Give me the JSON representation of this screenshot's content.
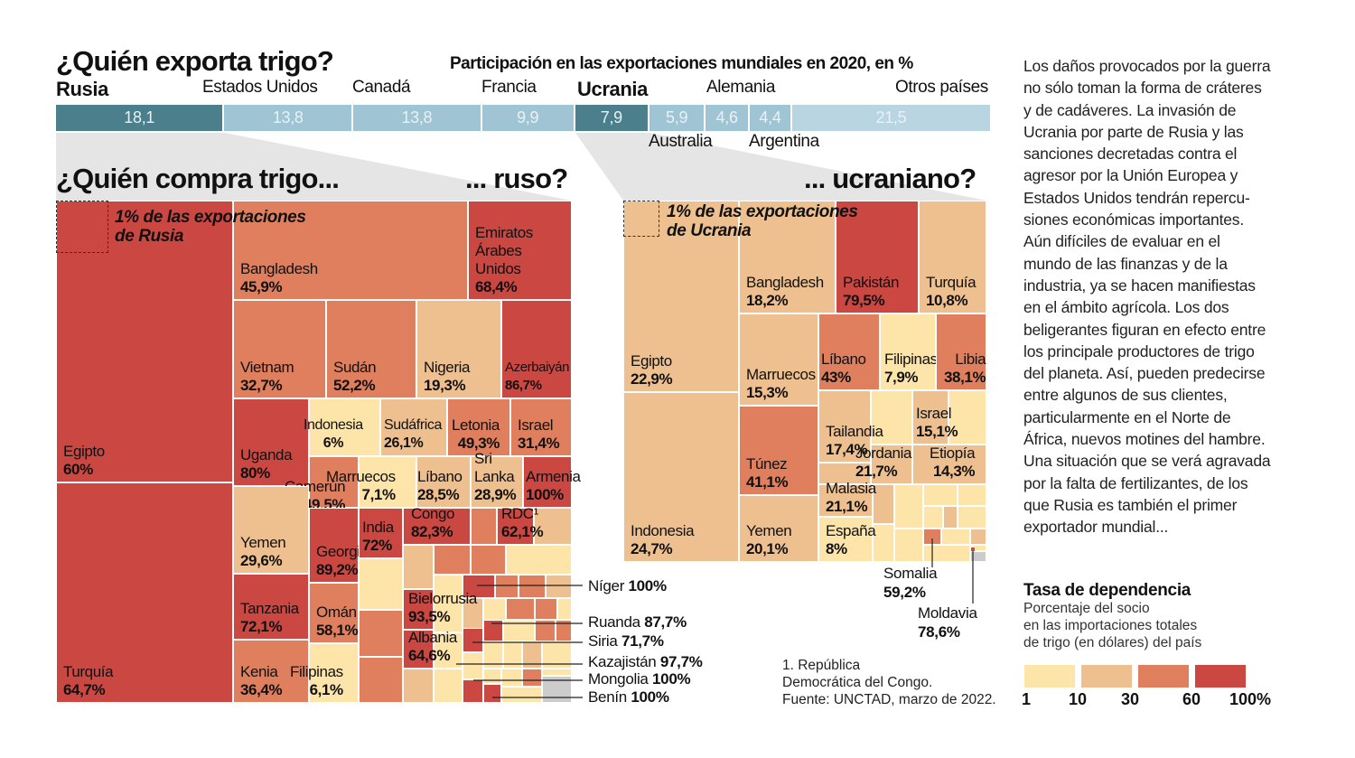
{
  "colors": {
    "bins": [
      "#fde5a9",
      "#efc08f",
      "#df7f5e",
      "#cb4742"
    ],
    "unlabeled_gray": "#cccccc",
    "export_highlight": "#4b7f8c",
    "export_other": "#9fc5d5",
    "export_rest": "#b9d5e2",
    "wedge": "#e5e5e5"
  },
  "title": "¿Quién exporta trigo?",
  "export_subtitle": "Participación en las exportaciones mundiales en 2020, en %",
  "chart_data": [
    {
      "type": "bar",
      "title": "¿Quién exporta trigo?",
      "subtitle": "Participación en las exportaciones mundiales en 2020, en %",
      "categories": [
        "Rusia",
        "Estados Unidos",
        "Canadá",
        "Francia",
        "Ucrania",
        "Australia",
        "Alemania",
        "Argentina",
        "Otros países"
      ],
      "values": [
        "18,1",
        "13,8",
        "13,8",
        "9,9",
        "7,9",
        "5,9",
        "4,6",
        "4,4",
        "21,5"
      ]
    },
    {
      "type": "treemap",
      "title": "¿Quién compra trigo... ruso?",
      "note": "1% de las exportaciones de Rusia",
      "cells": [
        {
          "name": "Egipto",
          "value": "60%"
        },
        {
          "name": "Turquía",
          "value": "64,7%"
        },
        {
          "name": "Bangladesh",
          "value": "45,9%"
        },
        {
          "name": "Emiratos Árabes Unidos",
          "value": "68,4%"
        },
        {
          "name": "Vietnam",
          "value": "32,7%"
        },
        {
          "name": "Sudán",
          "value": "52,2%"
        },
        {
          "name": "Nigeria",
          "value": "19,3%"
        },
        {
          "name": "Azerbaiyán",
          "value": "86,7%"
        },
        {
          "name": "Uganda",
          "value": "80%"
        },
        {
          "name": "Indonesia",
          "value": "6%"
        },
        {
          "name": "Sudáfrica",
          "value": "26,1%"
        },
        {
          "name": "Letonia",
          "value": "49,3%"
        },
        {
          "name": "Israel",
          "value": "31,4%"
        },
        {
          "name": "Camerún",
          "value": "49,5%"
        },
        {
          "name": "Marruecos",
          "value": "7,1%"
        },
        {
          "name": "Líbano",
          "value": "28,5%"
        },
        {
          "name": "Sri Lanka",
          "value": "28,9%"
        },
        {
          "name": "Armenia",
          "value": "100%"
        },
        {
          "name": "Yemen",
          "value": "29,6%"
        },
        {
          "name": "Tanzania",
          "value": "72,1%"
        },
        {
          "name": "Kenia",
          "value": "36,4%"
        },
        {
          "name": "Georgia",
          "value": "89,2%"
        },
        {
          "name": "Omán",
          "value": "58,1%"
        },
        {
          "name": "Filipinas",
          "value": "6,1%"
        },
        {
          "name": "India",
          "value": "72%"
        },
        {
          "name": "Congo",
          "value": "82,3%"
        },
        {
          "name": "RDC¹",
          "value": "62,1%"
        },
        {
          "name": "Bielorrusia",
          "value": "93,5%"
        },
        {
          "name": "Albania",
          "value": "64,6%"
        }
      ],
      "callouts": [
        {
          "name": "Níger",
          "value": "100%"
        },
        {
          "name": "Ruanda",
          "value": "87,7%"
        },
        {
          "name": "Siria",
          "value": "71,7%"
        },
        {
          "name": "Kazajistán",
          "value": "97,7%"
        },
        {
          "name": "Mongolia",
          "value": "100%"
        },
        {
          "name": "Benín",
          "value": "100%"
        }
      ]
    },
    {
      "type": "treemap",
      "title": "... ucraniano?",
      "note": "1% de las exportaciones de Ucrania",
      "cells": [
        {
          "name": "Egipto",
          "value": "22,9%"
        },
        {
          "name": "Indonesia",
          "value": "24,7%"
        },
        {
          "name": "Bangladesh",
          "value": "18,2%"
        },
        {
          "name": "Pakistán",
          "value": "79,5%"
        },
        {
          "name": "Turquía",
          "value": "10,8%"
        },
        {
          "name": "Marruecos",
          "value": "15,3%"
        },
        {
          "name": "Túnez",
          "value": "41,1%"
        },
        {
          "name": "Yemen",
          "value": "20,1%"
        },
        {
          "name": "Líbano",
          "value": "43%"
        },
        {
          "name": "Filipinas",
          "value": "7,9%"
        },
        {
          "name": "Libia",
          "value": "38,1%"
        },
        {
          "name": "Tailandia",
          "value": "17,4%"
        },
        {
          "name": "Israel",
          "value": "15,1%"
        },
        {
          "name": "Jordania",
          "value": "21,7%"
        },
        {
          "name": "Etiopía",
          "value": "14,3%"
        },
        {
          "name": "Malasia",
          "value": "21,1%"
        },
        {
          "name": "España",
          "value": "8%"
        }
      ],
      "callouts": [
        {
          "name": "Somalia",
          "value": "59,2%"
        },
        {
          "name": "Moldavia",
          "value": "78,6%"
        }
      ]
    }
  ],
  "buy_title": "¿Quién compra trigo...",
  "russia_title": "... ruso?",
  "ukraine_title": "... ucraniano?",
  "footnote": [
    "1. República",
    "Democrática del Congo.",
    "Fuente: UNCTAD, marzo de 2022."
  ],
  "paragraph": [
    "Los daños provocados por la guerra",
    "no sólo toman la forma de cráteres",
    "y de cadáveres. La invasión de",
    "Ucrania por parte de Rusia y las",
    "sanciones decretadas contra el",
    "agresor por la Unión Europea y",
    "Estados Unidos tendrán repercu-",
    "siones económicas importantes.",
    "Aún difíciles de evaluar en el",
    "mundo de las finanzas y de la",
    "industria, ya se hacen manifiestas",
    "en el ámbito agrícola. Los dos",
    "beligerantes figuran en efecto entre",
    "los principale productores de trigo",
    "del planeta. Así, pueden predecirse",
    "entre algunos de sus clientes,",
    "particularmente en el Norte de",
    "África, nuevos motines del hambre.",
    "Una situación que se verá agravada",
    "por la falta de fertilizantes, de los",
    "que Rusia es también el primer",
    "exportador mundial..."
  ],
  "legend": {
    "title": "Tasa de dependencia",
    "desc": [
      "Porcentaje del socio",
      "en las importaciones totales",
      "de trigo (en dólares) del país"
    ],
    "ticks": [
      "1",
      "10",
      "30",
      "60",
      "100%"
    ]
  }
}
